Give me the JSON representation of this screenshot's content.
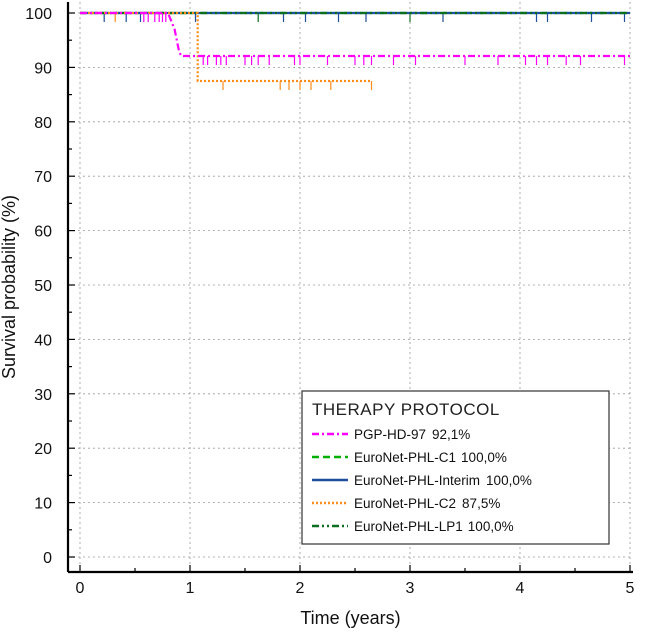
{
  "chart_data": {
    "type": "line",
    "xlabel": "Time (years)",
    "ylabel": "Survival probability (%)",
    "xlim": [
      0,
      5
    ],
    "ylim": [
      0,
      100
    ],
    "x_ticks": [
      0,
      1,
      2,
      3,
      4,
      5
    ],
    "y_ticks": [
      0,
      10,
      20,
      30,
      40,
      50,
      60,
      70,
      80,
      90,
      100
    ],
    "grid": true,
    "legend": {
      "title": "THERAPY PROTOCOL",
      "placement": "bottom-right"
    },
    "series": [
      {
        "name": "PGP-HD-97",
        "legend_value": "92,1%",
        "color": "#ff00ff",
        "style": "dash-dot",
        "steps": [
          [
            0,
            100
          ],
          [
            0.8,
            100
          ],
          [
            0.82,
            99
          ],
          [
            0.84,
            98
          ],
          [
            0.86,
            97
          ],
          [
            0.88,
            95
          ],
          [
            0.9,
            93
          ],
          [
            0.92,
            92.1
          ],
          [
            5.0,
            92.1
          ]
        ],
        "censor_times": [
          0.58,
          0.62,
          0.68,
          0.72,
          0.75,
          0.78,
          1.12,
          1.16,
          1.24,
          1.28,
          1.33,
          1.5,
          1.56,
          1.62,
          1.72,
          1.95,
          2.0,
          2.25,
          2.5,
          2.58,
          2.65,
          2.85,
          3.05,
          3.5,
          3.8,
          4.05,
          4.15,
          4.25,
          4.42,
          4.55,
          4.95
        ]
      },
      {
        "name": "EuroNet-PHL-C1",
        "legend_value": "100,0%",
        "color": "#00b000",
        "style": "dashed",
        "steps": [
          [
            0,
            100
          ],
          [
            5.0,
            100
          ]
        ],
        "censor_times": []
      },
      {
        "name": "EuroNet-PHL-Interim",
        "legend_value": "100,0%",
        "color": "#1f4e9e",
        "style": "solid",
        "steps": [
          [
            0,
            100
          ],
          [
            5.0,
            100
          ]
        ],
        "censor_times": [
          0.22,
          0.42,
          0.55,
          1.05,
          1.85,
          2.05,
          2.35,
          2.6,
          3.3,
          4.15,
          4.25,
          4.65,
          4.95
        ]
      },
      {
        "name": "EuroNet-PHL-C2",
        "legend_value": "87,5%",
        "color": "#ff8c1a",
        "style": "dotted",
        "steps": [
          [
            0,
            100
          ],
          [
            1.07,
            100
          ],
          [
            1.07,
            87.5
          ],
          [
            2.65,
            87.5
          ]
        ],
        "censor_times": [
          0.32,
          1.3,
          1.82,
          1.9,
          2.0,
          2.1,
          2.28,
          2.65
        ]
      },
      {
        "name": "EuroNet-PHL-LP1",
        "legend_value": "100,0%",
        "color": "#0a6e1e",
        "style": "dash-dot-dot",
        "steps": [
          [
            0,
            100
          ],
          [
            5.0,
            100
          ]
        ],
        "censor_times": [
          1.62,
          3.0
        ]
      }
    ]
  }
}
